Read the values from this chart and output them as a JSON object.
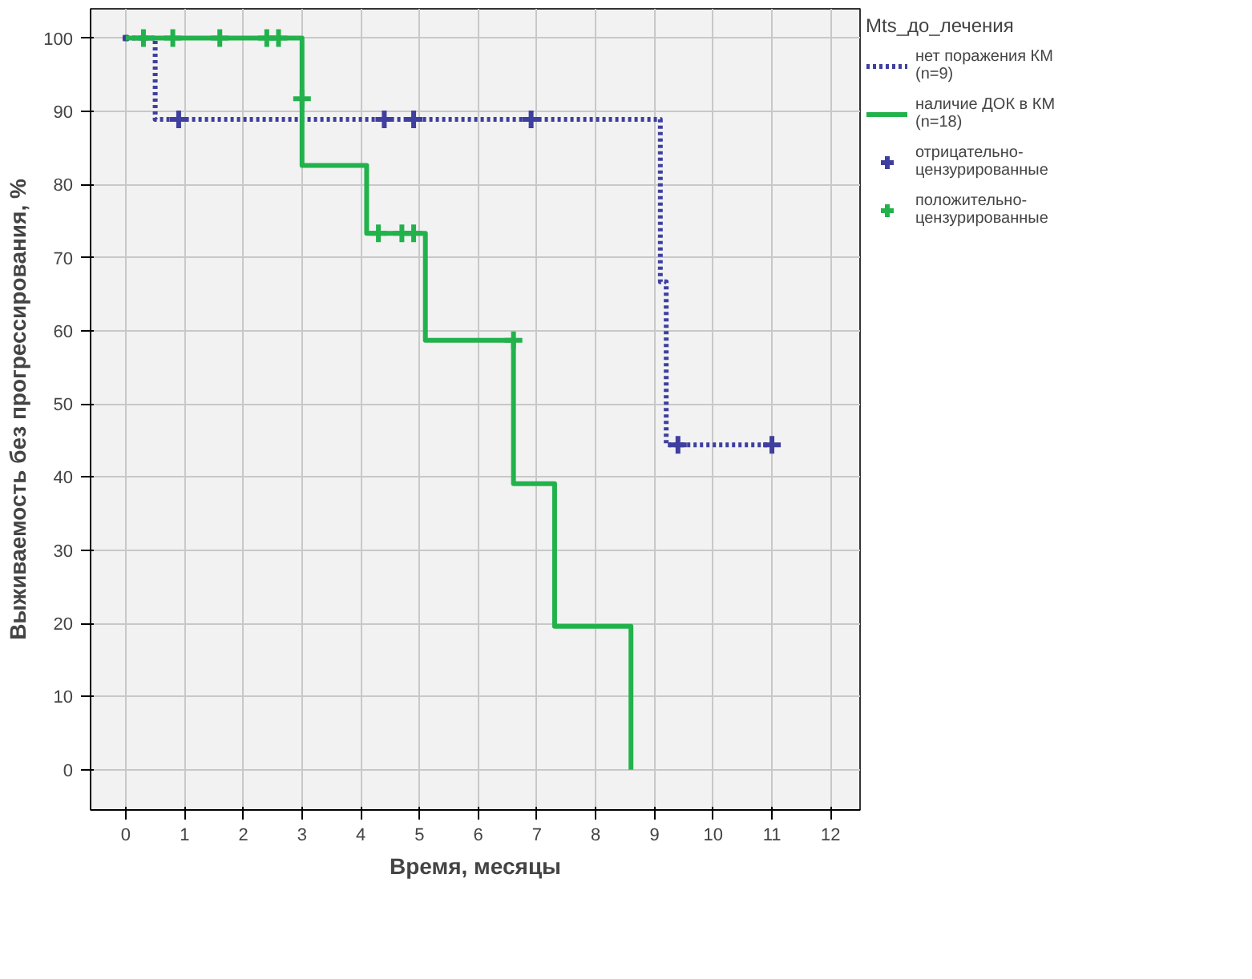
{
  "chart_data": {
    "type": "step",
    "xlabel": "Время, месяцы",
    "ylabel": "Выживаемость без прогрессирования, %",
    "legend_title": "Mts_до_лечения",
    "series": [
      {
        "name": "нет поражения КМ\n(n=9)",
        "color": "#3f3f9f",
        "line_style": "dotted",
        "x": [
          0,
          0.5,
          9.1,
          9.2,
          11.0
        ],
        "values": [
          100,
          88.9,
          66.7,
          44.4,
          44.4
        ]
      },
      {
        "name": "наличие ДОК в КМ\n(n=18)",
        "color": "#22b24c",
        "line_style": "solid",
        "x": [
          0,
          3.0,
          4.1,
          5.1,
          6.6,
          7.3,
          8.6
        ],
        "values": [
          100,
          82.6,
          73.3,
          58.7,
          39.1,
          19.6,
          0
        ]
      },
      {
        "name": "отрицательно-\nцензурированные",
        "type": "scatter",
        "marker": "cross",
        "color": "#3f3f9f",
        "x": [
          0.9,
          4.4,
          4.9,
          6.9,
          9.4,
          11.0
        ],
        "values": [
          88.9,
          88.9,
          88.9,
          88.9,
          44.4,
          44.4
        ]
      },
      {
        "name": "положительно-\nцензурированные",
        "type": "scatter",
        "marker": "cross",
        "color": "#22b24c",
        "x": [
          0.3,
          0.8,
          1.6,
          2.4,
          2.6,
          3.0,
          4.3,
          4.7,
          4.9,
          6.6
        ],
        "values": [
          100,
          100,
          100,
          100,
          100,
          91.7,
          73.3,
          73.3,
          73.3,
          58.7
        ]
      }
    ],
    "xlim": [
      -0.6,
      12.5
    ],
    "ylim": [
      -5.5,
      104
    ],
    "xticks": [
      0,
      1,
      2,
      3,
      4,
      5,
      6,
      7,
      8,
      9,
      10,
      11,
      12
    ],
    "yticks": [
      0,
      10,
      20,
      30,
      40,
      50,
      60,
      70,
      80,
      90,
      100
    ],
    "grid": true,
    "legend": "right"
  }
}
